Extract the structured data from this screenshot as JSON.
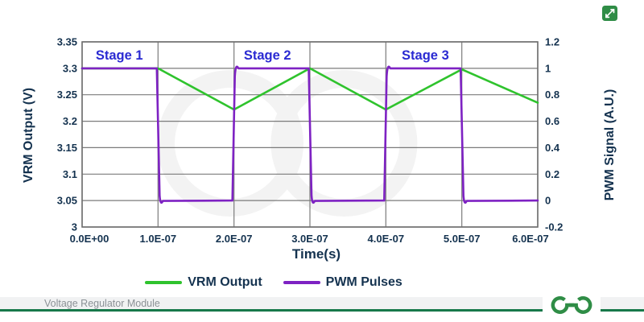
{
  "chart_data": {
    "type": "line",
    "title": "",
    "xlabel": "Time(s)",
    "ylabel_left": "VRM Output (V)",
    "ylabel_right": "PWM Signal (A.U.)",
    "xlim": [
      0,
      6e-07
    ],
    "ylim_left": [
      3,
      3.35
    ],
    "ylim_right": [
      -0.2,
      1.2
    ],
    "grid": true,
    "legend_position": "bottom",
    "x_ticks": [
      {
        "label": "0.0E+00",
        "v": 0
      },
      {
        "label": "1.0E-07",
        "v": 1e-07
      },
      {
        "label": "2.0E-07",
        "v": 2e-07
      },
      {
        "label": "3.0E-07",
        "v": 3e-07
      },
      {
        "label": "4.0E-07",
        "v": 4e-07
      },
      {
        "label": "5.0E-07",
        "v": 5e-07
      },
      {
        "label": "6.0E-07",
        "v": 6e-07
      }
    ],
    "y_ticks_left": [
      {
        "label": "3.35",
        "v": 3.35
      },
      {
        "label": "3.3",
        "v": 3.3
      },
      {
        "label": "3.25",
        "v": 3.25
      },
      {
        "label": "3.2",
        "v": 3.2
      },
      {
        "label": "3.15",
        "v": 3.15
      },
      {
        "label": "3.1",
        "v": 3.1
      },
      {
        "label": "3.05",
        "v": 3.05
      },
      {
        "label": "3",
        "v": 3.0
      }
    ],
    "y_ticks_right": [
      {
        "label": "1.2",
        "v": 1.2
      },
      {
        "label": "1",
        "v": 1.0
      },
      {
        "label": "0.8",
        "v": 0.8
      },
      {
        "label": "0.6",
        "v": 0.6
      },
      {
        "label": "0.4",
        "v": 0.4
      },
      {
        "label": "0.2",
        "v": 0.2
      },
      {
        "label": "0",
        "v": 0.0
      },
      {
        "label": "-0.2",
        "v": -0.2
      }
    ],
    "annotations": [
      {
        "label": "Stage 1",
        "t_center": 4.9e-08
      },
      {
        "label": "Stage 2",
        "t_center": 2.44e-07
      },
      {
        "label": "Stage 3",
        "t_center": 4.52e-07
      }
    ],
    "series": [
      {
        "name": "VRM Output",
        "axis": "left",
        "color": "#2fc32d",
        "points": [
          [
            0,
            3.3
          ],
          [
            1e-07,
            3.3
          ],
          [
            2e-07,
            3.222
          ],
          [
            3e-07,
            3.3
          ],
          [
            4e-07,
            3.222
          ],
          [
            5e-07,
            3.298
          ],
          [
            6e-07,
            3.235
          ]
        ]
      },
      {
        "name": "PWM Pulses",
        "axis": "right",
        "color": "#7e22c3",
        "points": [
          [
            0,
            1
          ],
          [
            1e-07,
            1
          ],
          [
            1e-07,
            0
          ],
          [
            2e-07,
            0
          ],
          [
            2e-07,
            1
          ],
          [
            3e-07,
            1
          ],
          [
            3e-07,
            0
          ],
          [
            4e-07,
            0
          ],
          [
            4e-07,
            1
          ],
          [
            5e-07,
            1
          ],
          [
            5e-07,
            0
          ],
          [
            6e-07,
            0
          ]
        ]
      }
    ],
    "colors": {
      "grid": "#7b7b7b",
      "border": "#6e6e6e",
      "axis_text": "#14324f",
      "stage_blue": "#2a2ad2",
      "watermark": "#f3f3f3"
    }
  },
  "expand_button": {
    "color": "#2f8d46"
  },
  "footer": {
    "caption": "Voltage Regulator Module",
    "rule_color": "#17784a",
    "logo_color": "#2f8d46",
    "logo_name": "geeksforgeeks-logo"
  }
}
